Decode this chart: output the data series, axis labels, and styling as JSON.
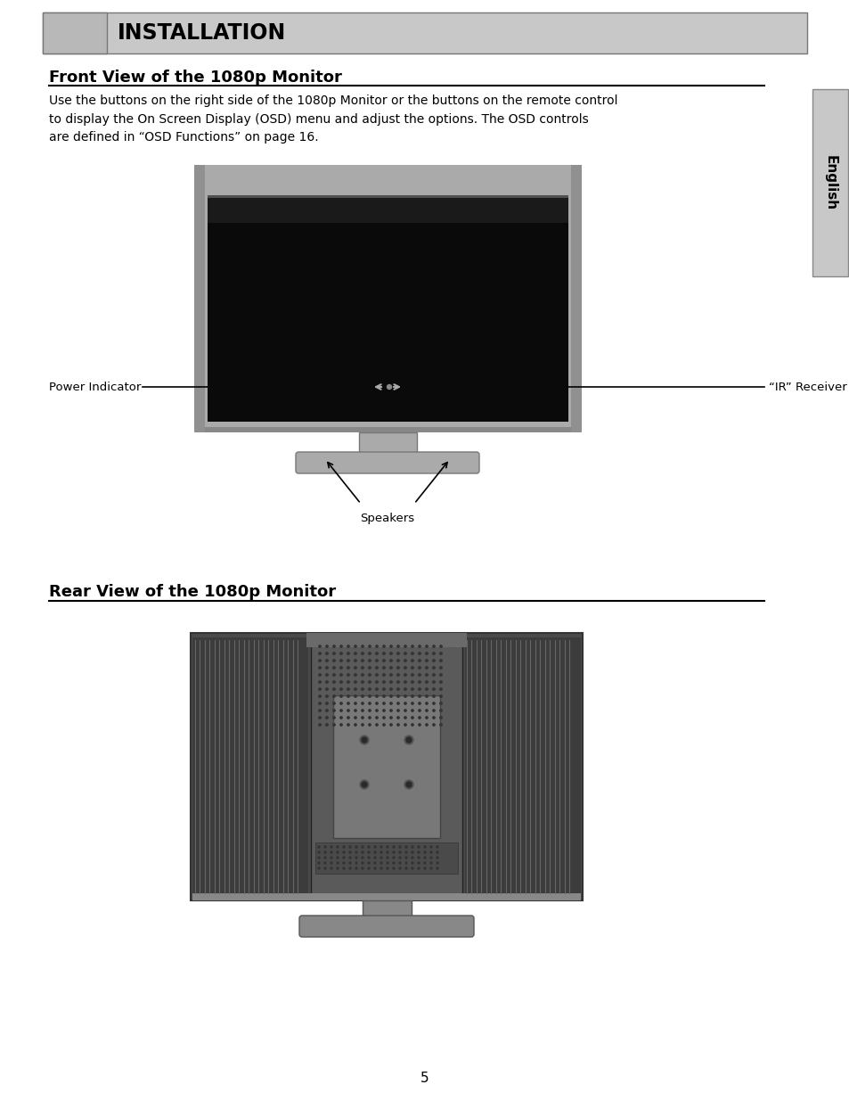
{
  "page_bg": "#ffffff",
  "header_bg": "#c8c8c8",
  "header_small_bg": "#b8b8b8",
  "header_text": "INSTALLATION",
  "header_font_size": 17,
  "english_tab_bg": "#c8c8c8",
  "english_text": "English",
  "section1_title": "Front View of the 1080p Monitor",
  "section1_title_fontsize": 13,
  "section1_body": "Use the buttons on the right side of the 1080p Monitor or the buttons on the remote control\nto display the On Screen Display (OSD) menu and adjust the options. The OSD controls\nare defined in “OSD Functions” on page 16.",
  "section1_body_fontsize": 10,
  "label_power": "Power Indicator",
  "label_ir": "“IR” Receiver",
  "label_speakers": "Speakers",
  "section2_title": "Rear View of the 1080p Monitor",
  "section2_title_fontsize": 13,
  "page_number": "5",
  "text_color": "#000000",
  "divider_color": "#000000"
}
